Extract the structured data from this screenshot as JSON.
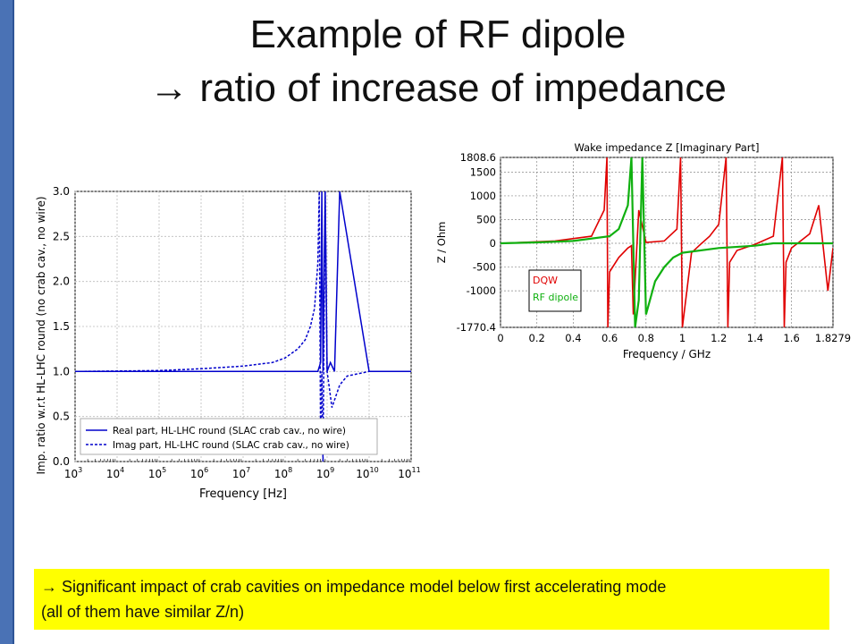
{
  "title_line1": "Example of RF dipole",
  "title_line2": "→ ratio of increase of impedance",
  "banner_line1": "→ Significant impact of crab cavities on impedance model below first accelerating mode",
  "banner_line2": "(all of them have similar Z/n)",
  "colors": {
    "slide_bar": "#4a72b5",
    "banner": "#ffff00",
    "chart1_line": "#0000cc",
    "dqw": "#e00000",
    "rf_dipole": "#10b010"
  },
  "chart_data": [
    {
      "type": "line",
      "xlabel": "Frequency [Hz]",
      "ylabel": "Imp. ratio w.r.t HL-LHC round (no crab cav., no wire)",
      "xscale": "log",
      "xlim": [
        1000,
        100000000000
      ],
      "ylim": [
        0.0,
        3.0
      ],
      "x_ticks": [
        3,
        4,
        5,
        6,
        7,
        8,
        9,
        10,
        11
      ],
      "y_ticks": [
        "0.0",
        "0.5",
        "1.0",
        "1.5",
        "2.0",
        "2.5",
        "3.0"
      ],
      "grid": true,
      "legend_position": "bottom-left",
      "series": [
        {
          "name": "Real part, HL-LHC round (SLAC crab cav., no wire)",
          "style": "solid",
          "x": [
            1000,
            10000000,
            300000000,
            600000000,
            700000000,
            750000000,
            800000000,
            900000000,
            1000000000,
            1200000000,
            1500000000,
            2000000000,
            10000000000,
            100000000000
          ],
          "y": [
            1.0,
            1.0,
            1.0,
            1.0,
            1.1,
            3.0,
            1.0,
            3.0,
            1.0,
            1.1,
            1.0,
            3.0,
            1.0,
            1.0
          ]
        },
        {
          "name": "Imag part, HL-LHC round (SLAC crab cav., no wire)",
          "style": "dashed",
          "x": [
            1000,
            100000,
            1000000,
            10000000,
            50000000,
            100000000,
            200000000,
            300000000,
            400000000,
            500000000,
            600000000,
            650000000,
            700000000,
            750000000,
            800000000,
            900000000,
            1000000000,
            1300000000,
            2000000000,
            3000000000,
            10000000000,
            100000000000
          ],
          "y": [
            1.0,
            1.01,
            1.03,
            1.06,
            1.1,
            1.15,
            1.25,
            1.35,
            1.5,
            1.7,
            2.2,
            3.0,
            0.2,
            1.0,
            0.0,
            3.0,
            1.0,
            0.6,
            0.85,
            0.95,
            1.0,
            1.0
          ]
        }
      ]
    },
    {
      "type": "line",
      "title": "Wake impedance Z [Imaginary Part]",
      "xlabel": "Frequency / GHz",
      "ylabel": "Z / Ohm",
      "xlim": [
        0,
        1.8279
      ],
      "ylim": [
        -1770.4,
        1808.6
      ],
      "x_ticks": [
        "0",
        "0.2",
        "0.4",
        "0.6",
        "0.8",
        "1",
        "1.2",
        "1.4",
        "1.6",
        "1.8279"
      ],
      "y_ticks": [
        "1808.6",
        "1500",
        "1000",
        "500",
        "0",
        "-500",
        "-1000",
        "-1770.4"
      ],
      "grid": true,
      "legend_position": "bottom-left",
      "series": [
        {
          "name": "DQW",
          "x": [
            0,
            0.3,
            0.5,
            0.57,
            0.585,
            0.59,
            0.6,
            0.65,
            0.7,
            0.72,
            0.73,
            0.76,
            0.8,
            0.9,
            0.97,
            0.99,
            1.0,
            1.05,
            1.1,
            1.15,
            1.2,
            1.24,
            1.25,
            1.26,
            1.3,
            1.4,
            1.5,
            1.55,
            1.56,
            1.57,
            1.6,
            1.65,
            1.7,
            1.75,
            1.8,
            1.8279
          ],
          "y": [
            0,
            50,
            150,
            700,
            1808.6,
            -1770.4,
            -600,
            -300,
            -100,
            -50,
            -1500,
            700,
            20,
            50,
            300,
            1808.6,
            -1770.4,
            -200,
            -20,
            150,
            400,
            1808.6,
            -1770.4,
            -400,
            -150,
            -20,
            150,
            1808.6,
            -1770.4,
            -400,
            -100,
            50,
            200,
            800,
            -1000,
            -100
          ]
        },
        {
          "name": "RF dipole",
          "x": [
            0,
            0.2,
            0.4,
            0.6,
            0.65,
            0.7,
            0.72,
            0.74,
            0.76,
            0.78,
            0.8,
            0.85,
            0.9,
            0.95,
            1.0,
            1.2,
            1.4,
            1.5,
            1.6,
            1.7,
            1.8,
            1.8279
          ],
          "y": [
            0,
            20,
            50,
            150,
            300,
            800,
            1808.6,
            -1770.4,
            -1200,
            1808.6,
            -1500,
            -800,
            -500,
            -300,
            -200,
            -100,
            -50,
            0,
            0,
            0,
            0,
            0
          ]
        }
      ]
    }
  ]
}
